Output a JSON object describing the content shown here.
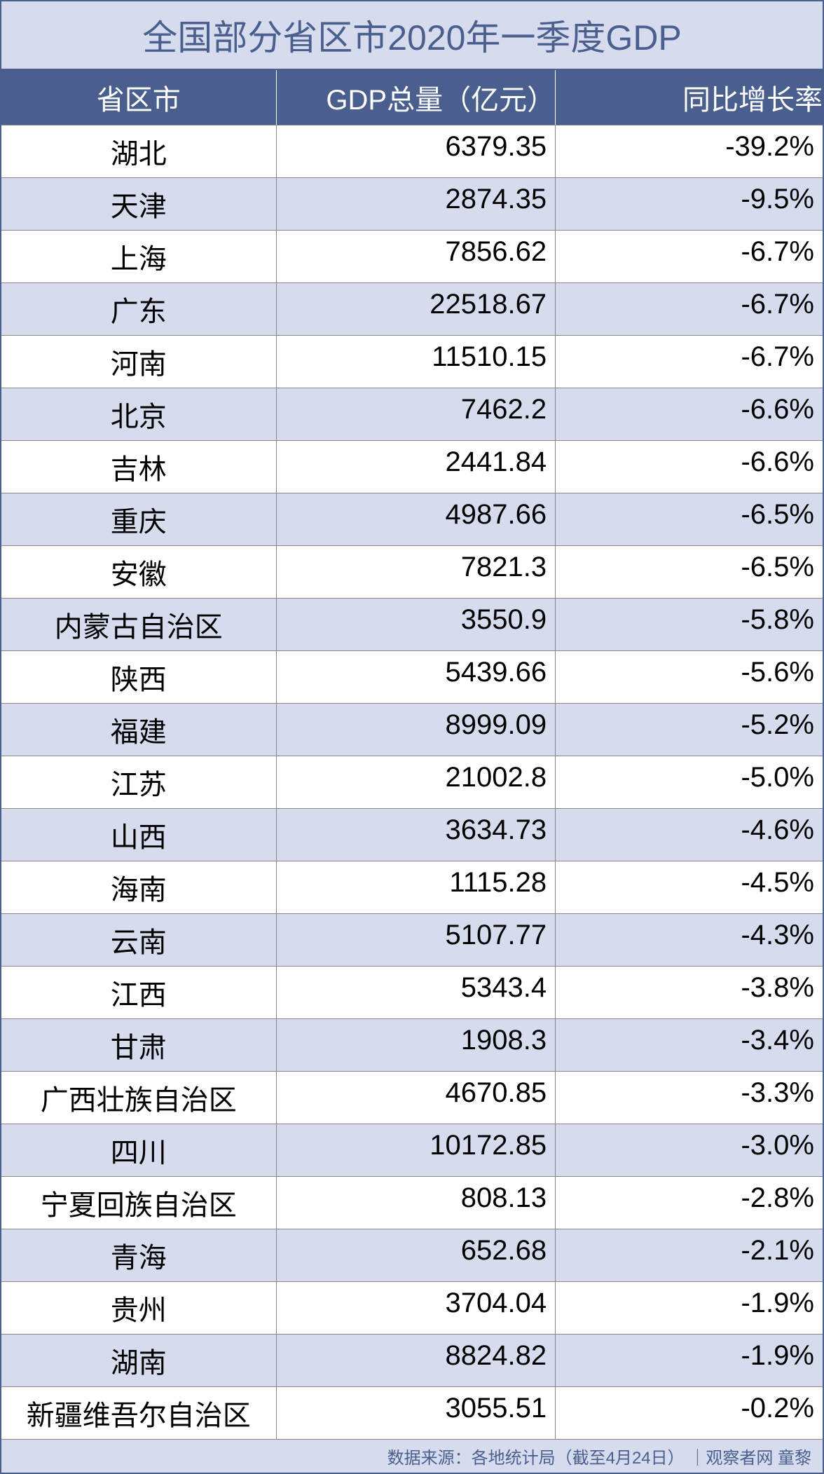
{
  "table": {
    "type": "table",
    "title": "全国部分省区市2020年一季度GDP",
    "columns": [
      "省区市",
      "GDP总量（亿元）",
      "同比增长率"
    ],
    "rows": [
      [
        "湖北",
        "6379.35",
        "-39.2%"
      ],
      [
        "天津",
        "2874.35",
        "-9.5%"
      ],
      [
        "上海",
        "7856.62",
        "-6.7%"
      ],
      [
        "广东",
        "22518.67",
        "-6.7%"
      ],
      [
        "河南",
        "11510.15",
        "-6.7%"
      ],
      [
        "北京",
        "7462.2",
        "-6.6%"
      ],
      [
        "吉林",
        "2441.84",
        "-6.6%"
      ],
      [
        "重庆",
        "4987.66",
        "-6.5%"
      ],
      [
        "安徽",
        "7821.3",
        "-6.5%"
      ],
      [
        "内蒙古自治区",
        "3550.9",
        "-5.8%"
      ],
      [
        "陕西",
        "5439.66",
        "-5.6%"
      ],
      [
        "福建",
        "8999.09",
        "-5.2%"
      ],
      [
        "江苏",
        "21002.8",
        "-5.0%"
      ],
      [
        "山西",
        "3634.73",
        "-4.6%"
      ],
      [
        "海南",
        "1115.28",
        "-4.5%"
      ],
      [
        "云南",
        "5107.77",
        "-4.3%"
      ],
      [
        "江西",
        "5343.4",
        "-3.8%"
      ],
      [
        "甘肃",
        "1908.3",
        "-3.4%"
      ],
      [
        "广西壮族自治区",
        "4670.85",
        "-3.3%"
      ],
      [
        "四川",
        "10172.85",
        "-3.0%"
      ],
      [
        "宁夏回族自治区",
        "808.13",
        "-2.8%"
      ],
      [
        "青海",
        "652.68",
        "-2.1%"
      ],
      [
        "贵州",
        "3704.04",
        "-1.9%"
      ],
      [
        "湖南",
        "8824.82",
        "-1.9%"
      ],
      [
        "新疆维吾尔自治区",
        "3055.51",
        "-0.2%"
      ]
    ],
    "footer": "数据来源：各地统计局（截至4月24日） ｜观察者网 童黎",
    "colors": {
      "header_bg": "#4a5f8e",
      "header_text": "#ffffff",
      "title_bg": "#d6dced",
      "title_text": "#4a5f8e",
      "row_even_bg": "#d6dced",
      "row_odd_bg": "#ffffff",
      "cell_text": "#000000",
      "border": "#888888",
      "outer_border": "#4a5f8e"
    },
    "column_widths": [
      "33.5%",
      "34%",
      "32.5%"
    ],
    "column_align": [
      "center",
      "right",
      "right"
    ],
    "title_fontsize": 50,
    "header_fontsize": 40,
    "cell_fontsize": 40,
    "footer_fontsize": 24
  }
}
